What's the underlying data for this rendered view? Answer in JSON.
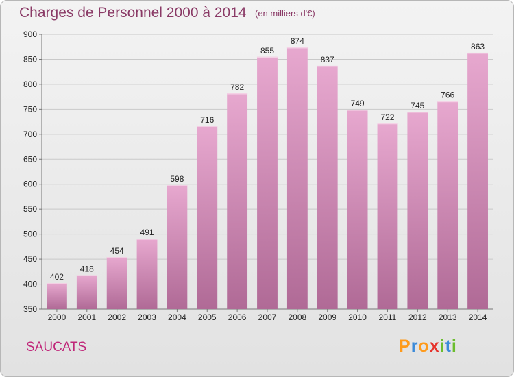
{
  "chart_data": {
    "type": "bar",
    "title": "Charges de Personnel 2000 à 2014",
    "subtitle": "(en milliers d'€)",
    "xlabel": "",
    "ylabel": "",
    "categories": [
      "2000",
      "2001",
      "2002",
      "2003",
      "2004",
      "2005",
      "2006",
      "2007",
      "2008",
      "2009",
      "2010",
      "2011",
      "2012",
      "2013",
      "2014"
    ],
    "values": [
      402,
      418,
      454,
      491,
      598,
      716,
      782,
      855,
      874,
      837,
      749,
      722,
      745,
      766,
      863
    ],
    "ylim": [
      350,
      900
    ],
    "yticks": [
      "350",
      "400",
      "450",
      "500",
      "550",
      "600",
      "650",
      "700",
      "750",
      "800",
      "850",
      "900"
    ],
    "grid": true,
    "legend": "none",
    "bar_color_top": "#e7a8cf",
    "bar_color_bottom": "#b06a96"
  },
  "place_name": "SAUCATS",
  "logo": {
    "text": "Proxiti",
    "letters": [
      "P",
      "r",
      "o",
      "x",
      "i",
      "t",
      "i"
    ],
    "colors": [
      "#ff9a1a",
      "#3b8ad9",
      "#ff9a1a",
      "#e6322b",
      "#6bbd2e",
      "#3b8ad9",
      "#6bbd2e"
    ]
  }
}
